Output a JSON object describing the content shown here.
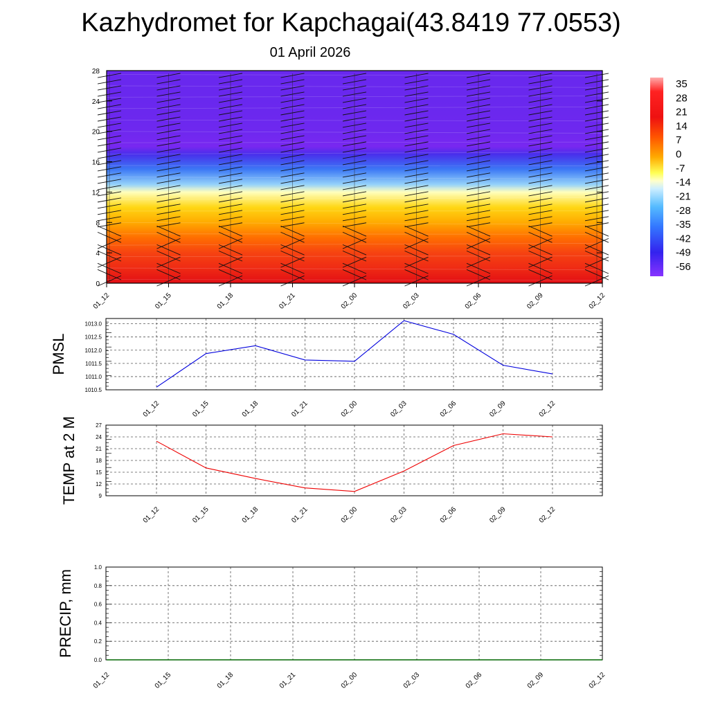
{
  "header": {
    "title": "Kazhydromet for Kapchagai(43.8419 77.0553)",
    "date": "01 April 2026"
  },
  "chart_data": [
    {
      "type": "heatmap",
      "title": "Kazhydromet for Kapchagai(43.8419 77.0553)",
      "subtitle": "01 April 2026",
      "x_categories": [
        "01_12",
        "01_15",
        "01_18",
        "01_21",
        "02_00",
        "02_03",
        "02_06",
        "02_09",
        "02_12"
      ],
      "y_ticks": [
        0,
        4,
        8,
        12,
        16,
        20,
        24,
        28
      ],
      "ylim": [
        0,
        28
      ],
      "colorbar_levels": [
        "35",
        "28",
        "21",
        "14",
        "7",
        "0",
        "-7",
        "-14",
        "-21",
        "-28",
        "-35",
        "-42",
        "-49",
        "-56"
      ],
      "temperature_profile": [
        {
          "level": 0,
          "value": 30
        },
        {
          "level": 2,
          "value": 24
        },
        {
          "level": 4,
          "value": 20
        },
        {
          "level": 6,
          "value": 14
        },
        {
          "level": 8,
          "value": 7
        },
        {
          "level": 10,
          "value": 0
        },
        {
          "level": 12,
          "value": -12
        },
        {
          "level": 13,
          "value": -20
        },
        {
          "level": 15,
          "value": -35
        },
        {
          "level": 17,
          "value": -50
        },
        {
          "level": 18,
          "value": -60
        },
        {
          "level": 20,
          "value": -58
        },
        {
          "level": 24,
          "value": -57
        },
        {
          "level": 28,
          "value": -57
        }
      ],
      "wind_barbs": "present at each time step and level"
    },
    {
      "type": "line",
      "ylabel": "PMSL",
      "categories": [
        "01_12",
        "01_15",
        "01_18",
        "01_21",
        "02_00",
        "02_03",
        "02_06",
        "02_09",
        "02_12"
      ],
      "values": [
        1010.6,
        1011.87,
        1012.17,
        1011.63,
        1011.58,
        1013.12,
        1012.6,
        1011.43,
        1011.1
      ],
      "y_ticks": [
        "1010.5",
        "1011.0",
        "1011.5",
        "1012.0",
        "1012.5",
        "1013.0"
      ],
      "ylim": [
        1010.5,
        1013.2
      ],
      "line_color": "#0000dd"
    },
    {
      "type": "line",
      "ylabel": "TEMP at 2 M",
      "categories": [
        "01_12",
        "01_15",
        "01_18",
        "01_21",
        "02_00",
        "02_03",
        "02_06",
        "02_09",
        "02_12"
      ],
      "values": [
        22.9,
        16.1,
        13.4,
        11.0,
        10.1,
        15.3,
        21.8,
        24.8,
        24.0
      ],
      "y_ticks": [
        "9",
        "12",
        "15",
        "18",
        "21",
        "24",
        "27"
      ],
      "ylim": [
        9,
        27
      ],
      "line_color": "#ee0000"
    },
    {
      "type": "line",
      "ylabel": "PRECIP, mm",
      "categories": [
        "01_12",
        "01_15",
        "01_18",
        "01_21",
        "02_00",
        "02_03",
        "02_06",
        "02_09",
        "02_12"
      ],
      "values": [
        0,
        0,
        0,
        0,
        0,
        0,
        0,
        0,
        0
      ],
      "y_ticks": [
        "0.0",
        "0.2",
        "0.4",
        "0.6",
        "0.8",
        "1.0"
      ],
      "ylim": [
        0,
        1
      ],
      "line_color": "#006600"
    }
  ]
}
